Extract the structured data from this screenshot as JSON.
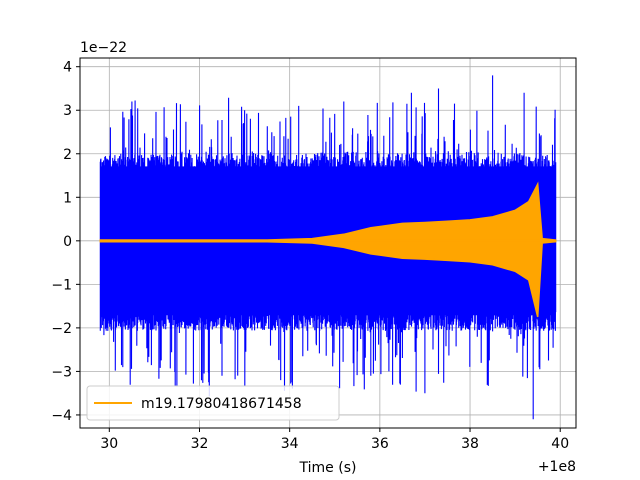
{
  "chart_data": {
    "type": "line",
    "xlabel": "Time (s)",
    "x_offset_label": "+1e8",
    "y_scale_label": "1e−22",
    "xlim": [
      29.35,
      40.35
    ],
    "ylim": [
      -4.3,
      4.2
    ],
    "x_ticks": [
      30,
      32,
      34,
      36,
      38,
      40
    ],
    "x_tick_labels": [
      "30",
      "32",
      "34",
      "36",
      "38",
      "40"
    ],
    "y_ticks": [
      -4,
      -3,
      -2,
      -1,
      0,
      1,
      2,
      3,
      4
    ],
    "y_tick_labels": [
      "−4",
      "−3",
      "−2",
      "−1",
      "0",
      "1",
      "2",
      "3",
      "4"
    ],
    "grid": true,
    "legend_position": "lower-left",
    "series": [
      {
        "color": "#0000ff",
        "kind": "noise",
        "x_range": [
          29.8,
          39.9
        ],
        "envelope": {
          "core": 1.8,
          "peak_max": 3.8,
          "peak_min": -4.1
        }
      },
      {
        "name": "m19.17980418671458",
        "color": "#ffa500",
        "kind": "chirp",
        "envelope_points": [
          [
            29.8,
            0.02
          ],
          [
            33.5,
            0.02
          ],
          [
            34.5,
            0.05
          ],
          [
            35.2,
            0.15
          ],
          [
            35.8,
            0.3
          ],
          [
            36.5,
            0.4
          ],
          [
            37.0,
            0.42
          ],
          [
            37.5,
            0.45
          ],
          [
            38.0,
            0.48
          ],
          [
            38.5,
            0.55
          ],
          [
            39.0,
            0.7
          ],
          [
            39.3,
            0.9
          ],
          [
            39.5,
            1.3
          ],
          [
            39.6,
            0.05
          ],
          [
            39.9,
            0.02
          ]
        ],
        "trough_min": -1.75
      }
    ]
  }
}
